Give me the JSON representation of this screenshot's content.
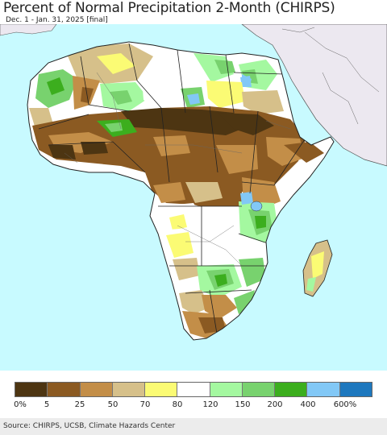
{
  "header": {
    "title": "Percent of Normal Precipitation 2-Month (CHIRPS)",
    "subtitle": "Dec. 1 - Jan. 31, 2025 [final]"
  },
  "legend": {
    "colors": [
      "#4d3512",
      "#8b5a22",
      "#c38e48",
      "#d6c08a",
      "#fbfb74",
      "#ffffff",
      "#a4f8a0",
      "#78d26e",
      "#3cae1e",
      "#82c8f6",
      "#1e78be"
    ],
    "labels": [
      "0%",
      "5",
      "25",
      "50",
      "70",
      "80",
      "120",
      "150",
      "200",
      "400",
      "600%"
    ]
  },
  "map": {
    "ocean_color": "#c8faff",
    "no_data_land_color": "#ece8f0"
  },
  "footer": {
    "source": "Source: CHIRPS, UCSB, Climate Hazards Center"
  }
}
